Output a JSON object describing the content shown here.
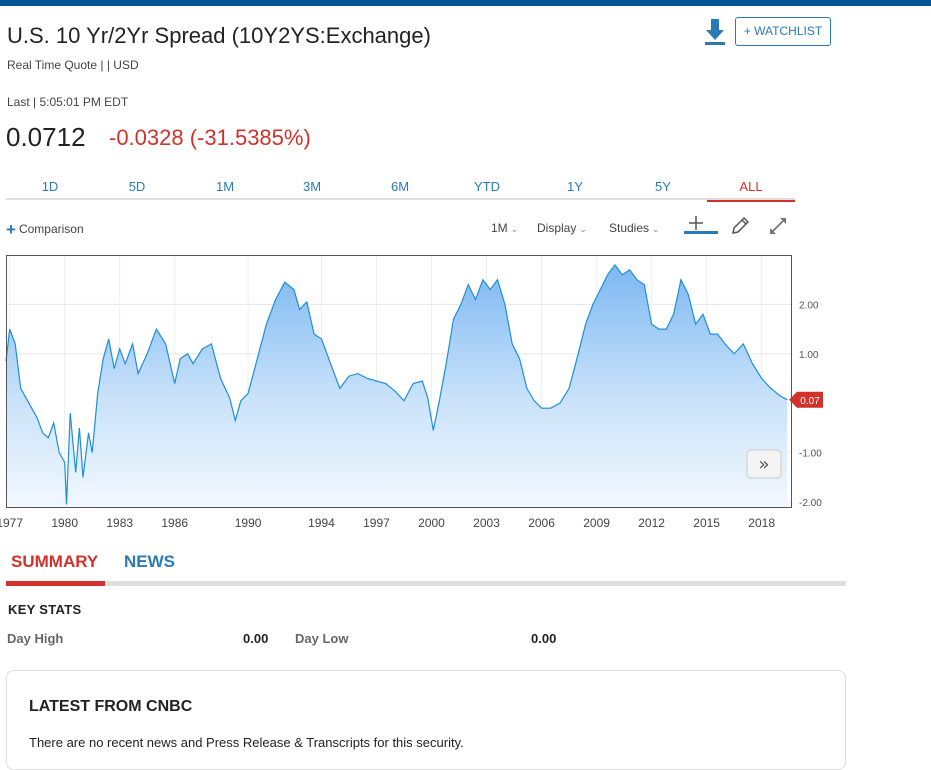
{
  "header": {
    "title": "U.S. 10 Yr/2Yr Spread (10Y2YS:Exchange)",
    "subtitle": "Real Time Quote | | USD",
    "watchlist_label": "+ WATCHLIST"
  },
  "quote": {
    "last_line": "Last | 5:05:01 PM EDT",
    "price": "0.0712",
    "change": "-0.0328 (-31.5385%)"
  },
  "range_tabs": [
    "1D",
    "5D",
    "1M",
    "3M",
    "6M",
    "YTD",
    "1Y",
    "5Y",
    "ALL"
  ],
  "range_active": "ALL",
  "toolbar": {
    "comparison": "Comparison",
    "interval": "1M",
    "display": "Display",
    "studies": "Studies"
  },
  "colors": {
    "accent_red": "#d1322b",
    "link_blue": "#2a7ab5",
    "top_bar": "#005594",
    "line": "#1e8fd6"
  },
  "chart_data": {
    "type": "area",
    "x_tick_labels": [
      "1977",
      "1980",
      "1983",
      "1986",
      "1990",
      "1994",
      "1997",
      "2000",
      "2003",
      "2006",
      "2009",
      "2012",
      "2015",
      "2018"
    ],
    "y_tick_labels": [
      "2.00",
      "1.00",
      "-1.00",
      "-2.00"
    ],
    "ylim": [
      -2.1,
      3.0
    ],
    "xlim": [
      1976.8,
      2019.6
    ],
    "last_value_label": "0.07",
    "series": [
      {
        "x": [
          1976.8,
          1977.0,
          1977.3,
          1977.6,
          1977.9,
          1978.2,
          1978.5,
          1978.8,
          1979.1,
          1979.4,
          1979.7,
          1980.0,
          1980.1,
          1980.3,
          1980.6,
          1980.8,
          1981.0,
          1981.3,
          1981.5,
          1981.8,
          1982.1,
          1982.4,
          1982.7,
          1983.0,
          1983.3,
          1983.7,
          1984.0,
          1984.5,
          1985.0,
          1985.5,
          1986.0,
          1986.3,
          1986.7,
          1987.0,
          1987.5,
          1988.0,
          1988.5,
          1989.0,
          1989.3,
          1989.6,
          1990.0,
          1990.5,
          1991.0,
          1991.5,
          1992.0,
          1992.5,
          1992.8,
          1993.2,
          1993.6,
          1994.0,
          1994.5,
          1995.0,
          1995.5,
          1996.0,
          1996.5,
          1997.0,
          1997.5,
          1998.0,
          1998.5,
          1999.0,
          1999.5,
          1999.8,
          2000.1,
          2000.4,
          2000.8,
          2001.2,
          2001.6,
          2002.0,
          2002.4,
          2002.8,
          2003.2,
          2003.6,
          2004.0,
          2004.4,
          2004.8,
          2005.2,
          2005.6,
          2006.0,
          2006.5,
          2007.0,
          2007.5,
          2008.0,
          2008.4,
          2008.8,
          2009.2,
          2009.6,
          2010.0,
          2010.4,
          2010.8,
          2011.2,
          2011.6,
          2012.0,
          2012.4,
          2012.8,
          2013.2,
          2013.6,
          2014.0,
          2014.4,
          2014.8,
          2015.2,
          2015.6,
          2016.0,
          2016.5,
          2017.0,
          2017.5,
          2018.0,
          2018.5,
          2019.0,
          2019.4
        ],
        "values": [
          0.85,
          1.5,
          1.2,
          0.3,
          0.1,
          -0.1,
          -0.3,
          -0.6,
          -0.7,
          -0.4,
          -1.0,
          -1.2,
          -2.05,
          -0.2,
          -1.4,
          -0.5,
          -1.5,
          -0.6,
          -1.0,
          0.2,
          0.9,
          1.3,
          0.7,
          1.1,
          0.8,
          1.2,
          0.6,
          1.0,
          1.5,
          1.2,
          0.4,
          0.9,
          1.0,
          0.8,
          1.1,
          1.2,
          0.5,
          0.1,
          -0.35,
          0.05,
          0.2,
          0.9,
          1.6,
          2.1,
          2.45,
          2.3,
          1.9,
          2.05,
          1.4,
          1.3,
          0.8,
          0.3,
          0.55,
          0.6,
          0.5,
          0.45,
          0.4,
          0.25,
          0.05,
          0.4,
          0.45,
          0.1,
          -0.55,
          0.0,
          0.8,
          1.7,
          2.0,
          2.4,
          2.1,
          2.5,
          2.3,
          2.5,
          2.0,
          1.2,
          0.9,
          0.3,
          0.05,
          -0.1,
          -0.1,
          0.0,
          0.3,
          1.0,
          1.6,
          2.0,
          2.3,
          2.6,
          2.8,
          2.6,
          2.7,
          2.5,
          2.4,
          1.6,
          1.5,
          1.5,
          1.8,
          2.5,
          2.2,
          1.6,
          1.8,
          1.4,
          1.4,
          1.2,
          1.0,
          1.2,
          0.8,
          0.5,
          0.3,
          0.15,
          0.07
        ]
      }
    ]
  },
  "summary": {
    "tabs": [
      "SUMMARY",
      "NEWS"
    ],
    "key_stats_title": "KEY STATS",
    "day_high_label": "Day High",
    "day_high_value": "0.00",
    "day_low_label": "Day Low",
    "day_low_value": "0.00"
  },
  "latest": {
    "title": "LATEST FROM CNBC",
    "message": "There are no recent news and Press Release & Transcripts for this security."
  }
}
